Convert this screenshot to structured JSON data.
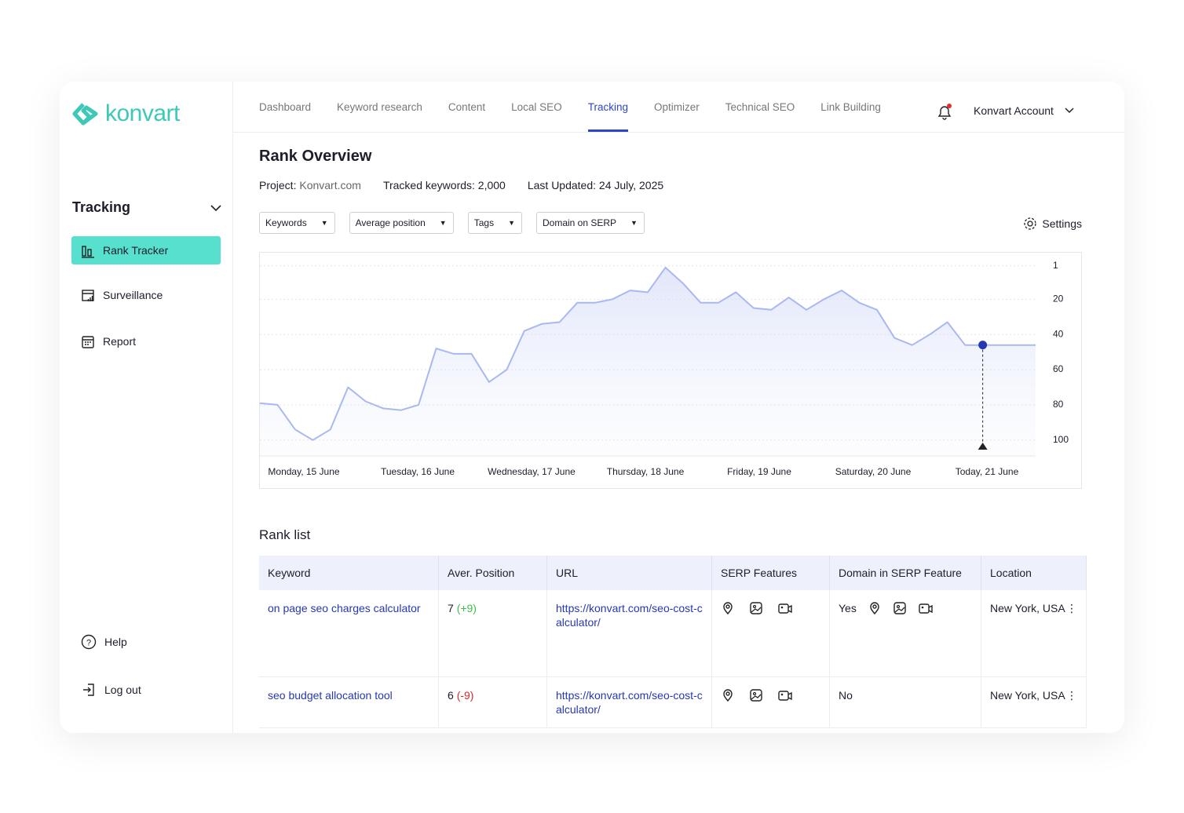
{
  "brand": "konvart",
  "nav": {
    "tabs": [
      "Dashboard",
      "Keyword research",
      "Content",
      "Local SEO",
      "Tracking",
      "Optimizer",
      "Technical SEO",
      "Link Building"
    ],
    "active": 4,
    "account": "Konvart Account"
  },
  "sidebar": {
    "section": "Tracking",
    "items": [
      "Rank Tracker",
      "Surveillance",
      "Report"
    ],
    "active": 0,
    "footer": [
      "Help",
      "Log out"
    ]
  },
  "header": {
    "title": "Rank Overview",
    "project_label": "Project:",
    "project": "Konvart.com",
    "tracked": "Tracked keywords: 2,000",
    "updated": "Last Updated: 24 July, 2025"
  },
  "filters": [
    "Keywords",
    "Average position",
    "Tags",
    "Domain on SERP"
  ],
  "settings": "Settings",
  "chart_data": {
    "type": "area",
    "x_labels": [
      "Monday, 15 June",
      "Tuesday, 16 June",
      "Wednesday, 17 June",
      "Thursday, 18 June",
      "Friday, 19 June",
      "Saturday, 20 June",
      "Today, 21 June"
    ],
    "values": [
      79,
      80,
      94,
      100,
      94,
      70,
      78,
      82,
      83,
      80,
      48,
      51,
      51,
      67,
      60,
      38,
      34,
      33,
      22,
      22,
      20,
      15,
      16,
      2,
      11,
      22,
      22,
      16,
      25,
      26,
      19,
      26,
      20,
      15,
      22,
      26,
      42,
      46,
      40,
      33,
      46,
      46,
      46,
      46,
      46
    ],
    "color": "#a9b8f0",
    "marker_color": "#2438b5",
    "highlight": 41,
    "ylim": [
      -6,
      109
    ],
    "y_reversed": true,
    "yticks": [
      1,
      20,
      40,
      60,
      80,
      100
    ],
    "grid": true
  },
  "rank_list": {
    "title": "Rank list",
    "columns": [
      "Keyword",
      "Aver. Position",
      "URL",
      "SERP Features",
      "Domain in SERP Feature",
      "Location"
    ],
    "rows": [
      {
        "keyword": "on page seo charges calculator",
        "position": 7,
        "change": "(+9)",
        "url": "https://konvart.com/seo-cost-calculator/",
        "domain_in_serp": "Yes",
        "location": "New York, USA"
      },
      {
        "keyword": "seo budget allocation tool",
        "position": 6,
        "change": "(-9)",
        "url": "https://konvart.com/seo-cost-calculator/",
        "domain_in_serp": "No",
        "location": "New York, USA"
      }
    ]
  }
}
